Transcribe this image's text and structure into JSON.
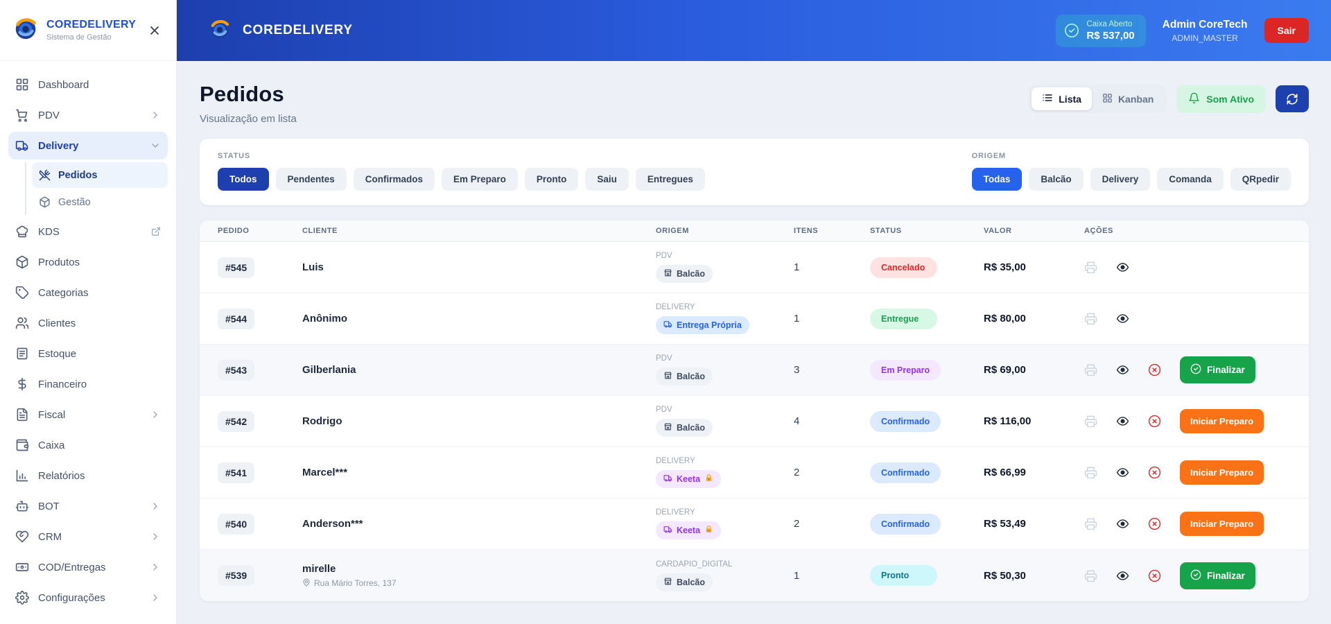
{
  "brand": {
    "name": "COREDELIVERY",
    "subtitle": "Sistema de Gestão"
  },
  "sidebar": {
    "items": [
      {
        "label": "Dashboard",
        "icon": "grid"
      },
      {
        "label": "PDV",
        "icon": "cart",
        "chevron": "right"
      },
      {
        "label": "Delivery",
        "icon": "truck",
        "chevron": "down",
        "active": true
      },
      {
        "label": "Pedidos",
        "icon": "utensils",
        "sub": true,
        "active": true
      },
      {
        "label": "Gestão",
        "icon": "package",
        "sub": true
      },
      {
        "label": "KDS",
        "icon": "chefhat",
        "trailing": "external"
      },
      {
        "label": "Produtos",
        "icon": "package"
      },
      {
        "label": "Categorias",
        "icon": "tag"
      },
      {
        "label": "Clientes",
        "icon": "users"
      },
      {
        "label": "Estoque",
        "icon": "archive"
      },
      {
        "label": "Financeiro",
        "icon": "dollar"
      },
      {
        "label": "Fiscal",
        "icon": "filetext",
        "chevron": "right"
      },
      {
        "label": "Caixa",
        "icon": "wallet"
      },
      {
        "label": "Relatórios",
        "icon": "barchart"
      },
      {
        "label": "BOT",
        "icon": "bot",
        "chevron": "right"
      },
      {
        "label": "CRM",
        "icon": "heartshake",
        "chevron": "right"
      },
      {
        "label": "COD/Entregas",
        "icon": "banknote",
        "chevron": "right"
      },
      {
        "label": "Configurações",
        "icon": "gear",
        "chevron": "right"
      }
    ]
  },
  "topbar": {
    "caixa": {
      "label": "Caixa Aberto",
      "value": "R$ 537,00"
    },
    "user": {
      "name": "Admin CoreTech",
      "role": "ADMIN_MASTER"
    },
    "logout": "Sair"
  },
  "page": {
    "title": "Pedidos",
    "subtitle": "Visualização em lista",
    "toggle": {
      "lista": "Lista",
      "kanban": "Kanban"
    },
    "sound": "Som Ativo"
  },
  "filters": {
    "status": {
      "label": "STATUS",
      "active": "Todos",
      "options": [
        "Todos",
        "Pendentes",
        "Confirmados",
        "Em Preparo",
        "Pronto",
        "Saiu",
        "Entregues"
      ]
    },
    "origem": {
      "label": "ORIGEM",
      "active": "Todas",
      "options": [
        "Todas",
        "Balcão",
        "Delivery",
        "Comanda",
        "QRpedir"
      ]
    }
  },
  "table": {
    "columns": [
      "PEDIDO",
      "CLIENTE",
      "ORIGEM",
      "ITENS",
      "STATUS",
      "VALOR",
      "AÇÕES"
    ],
    "rows": [
      {
        "id": "#545",
        "cliente": "Luis",
        "address": "",
        "origem_tipo": "PDV",
        "origem_chip": "Balcão",
        "chip_style": "gray",
        "chip_icon": "store",
        "chip_lock": false,
        "itens": "1",
        "status": "Cancelado",
        "status_style": "red",
        "valor": "R$ 35,00",
        "cancel": false,
        "action": "",
        "action_style": "",
        "highlight": false
      },
      {
        "id": "#544",
        "cliente": "Anônimo",
        "address": "",
        "origem_tipo": "DELIVERY",
        "origem_chip": "Entrega Própria",
        "chip_style": "blue",
        "chip_icon": "truck",
        "chip_lock": false,
        "itens": "1",
        "status": "Entregue",
        "status_style": "green",
        "valor": "R$ 80,00",
        "cancel": false,
        "action": "",
        "action_style": "",
        "highlight": false
      },
      {
        "id": "#543",
        "cliente": "Gilberlania",
        "address": "",
        "origem_tipo": "PDV",
        "origem_chip": "Balcão",
        "chip_style": "gray",
        "chip_icon": "store",
        "chip_lock": false,
        "itens": "3",
        "status": "Em Preparo",
        "status_style": "purple",
        "valor": "R$ 69,00",
        "cancel": true,
        "action": "Finalizar",
        "action_style": "green",
        "highlight": true
      },
      {
        "id": "#542",
        "cliente": "Rodrigo",
        "address": "",
        "origem_tipo": "PDV",
        "origem_chip": "Balcão",
        "chip_style": "gray",
        "chip_icon": "store",
        "chip_lock": false,
        "itens": "4",
        "status": "Confirmado",
        "status_style": "blue",
        "valor": "R$ 116,00",
        "cancel": true,
        "action": "Iniciar Preparo",
        "action_style": "orange",
        "highlight": false
      },
      {
        "id": "#541",
        "cliente": "Marcel***",
        "address": "",
        "origem_tipo": "DELIVERY",
        "origem_chip": "Keeta",
        "chip_style": "purple",
        "chip_icon": "truck",
        "chip_lock": true,
        "itens": "2",
        "status": "Confirmado",
        "status_style": "blue",
        "valor": "R$ 66,99",
        "cancel": true,
        "action": "Iniciar Preparo",
        "action_style": "orange",
        "highlight": false
      },
      {
        "id": "#540",
        "cliente": "Anderson***",
        "address": "",
        "origem_tipo": "DELIVERY",
        "origem_chip": "Keeta",
        "chip_style": "purple",
        "chip_icon": "truck",
        "chip_lock": true,
        "itens": "2",
        "status": "Confirmado",
        "status_style": "blue",
        "valor": "R$ 53,49",
        "cancel": true,
        "action": "Iniciar Preparo",
        "action_style": "orange",
        "highlight": false
      },
      {
        "id": "#539",
        "cliente": "mirelle",
        "address": "Rua Mário Torres, 137",
        "origem_tipo": "CARDAPIO_DIGITAL",
        "origem_chip": "Balcão",
        "chip_style": "gray",
        "chip_icon": "store",
        "chip_lock": false,
        "itens": "1",
        "status": "Pronto",
        "status_style": "cyan",
        "valor": "R$ 50,30",
        "cancel": true,
        "action": "Finalizar",
        "action_style": "green",
        "highlight": true
      }
    ]
  },
  "colors": {
    "topbar_gradient_start": "#1d3fae",
    "topbar_gradient_end": "#3b7bf0",
    "status_active": "#1e40af",
    "origem_active": "#2563eb",
    "danger": "#dc2626",
    "success": "#16a34a",
    "warning_action": "#f97316",
    "cancelado": "#dc2626",
    "entregue": "#15a053",
    "em_preparo": "#9333ea",
    "confirmado": "#2563eb",
    "pronto": "#0e7490"
  }
}
